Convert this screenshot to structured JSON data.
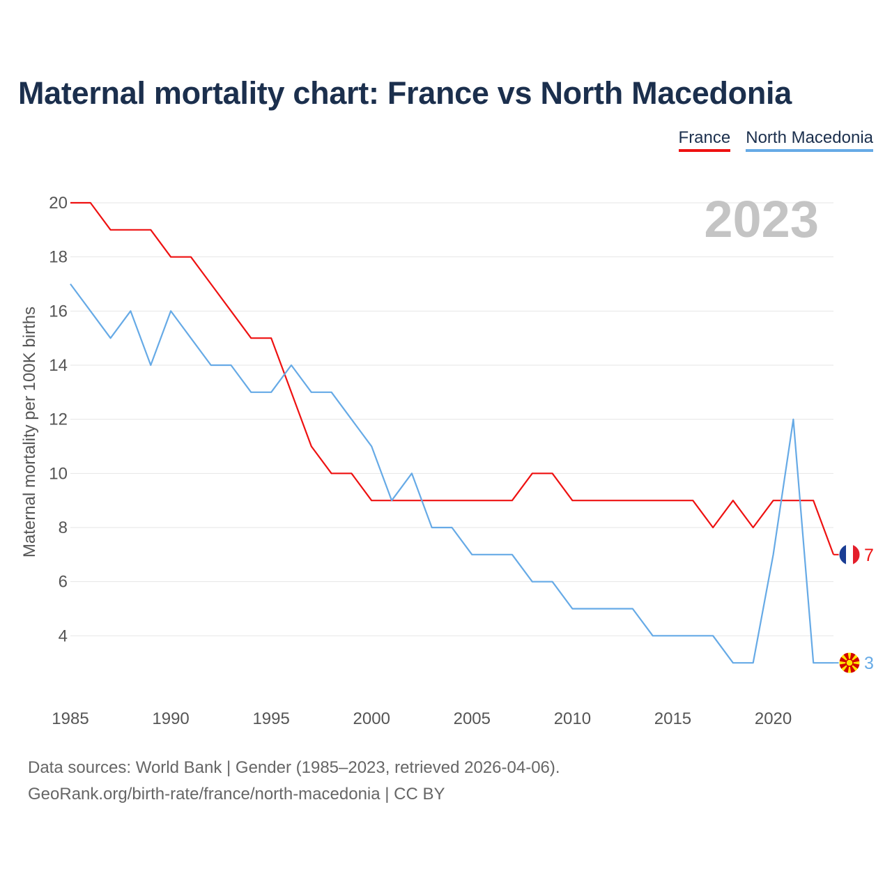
{
  "title": "Maternal mortality chart: France vs North Macedonia",
  "legend": [
    {
      "label": "France",
      "color": "#ee1111"
    },
    {
      "label": "North Macedonia",
      "color": "#66aae6"
    }
  ],
  "footer": {
    "line1": "Data sources: World Bank | Gender (1985–2023, retrieved 2026-04-06).",
    "line2": "GeoRank.org/birth-rate/france/north-macedonia | CC BY"
  },
  "chart_data": {
    "type": "line",
    "title": "Maternal mortality chart: France vs North Macedonia",
    "ylabel": "Maternal mortality per 100K births",
    "xlabel": "",
    "year_label": "2023",
    "x": [
      1985,
      1986,
      1987,
      1988,
      1989,
      1990,
      1991,
      1992,
      1993,
      1994,
      1995,
      1996,
      1997,
      1998,
      1999,
      2000,
      2001,
      2002,
      2003,
      2004,
      2005,
      2006,
      2007,
      2008,
      2009,
      2010,
      2011,
      2012,
      2013,
      2014,
      2015,
      2016,
      2017,
      2018,
      2019,
      2020,
      2021,
      2022,
      2023
    ],
    "xlim": [
      1985,
      2023
    ],
    "ylim": [
      2,
      20
    ],
    "xticks": [
      1985,
      1990,
      1995,
      2000,
      2005,
      2010,
      2015,
      2020
    ],
    "yticks": [
      4,
      6,
      8,
      10,
      12,
      14,
      16,
      18,
      20
    ],
    "grid": true,
    "series": [
      {
        "name": "France",
        "color": "#ee1111",
        "end_label": "7",
        "flag": "france-flag",
        "values": [
          20,
          20,
          19,
          19,
          19,
          18,
          18,
          17,
          16,
          15,
          15,
          13,
          11,
          10,
          10,
          9,
          9,
          9,
          9,
          9,
          9,
          9,
          9,
          10,
          10,
          9,
          9,
          9,
          9,
          9,
          9,
          9,
          8,
          9,
          8,
          9,
          9,
          9,
          7
        ]
      },
      {
        "name": "North Macedonia",
        "color": "#66aae6",
        "end_label": "3",
        "flag": "north-macedonia-flag",
        "values": [
          17,
          16,
          15,
          16,
          14,
          16,
          15,
          14,
          14,
          13,
          13,
          14,
          13,
          13,
          12,
          11,
          9,
          10,
          8,
          8,
          7,
          7,
          7,
          6,
          6,
          5,
          5,
          5,
          5,
          4,
          4,
          4,
          4,
          3,
          3,
          7,
          12,
          3,
          3
        ]
      }
    ]
  }
}
